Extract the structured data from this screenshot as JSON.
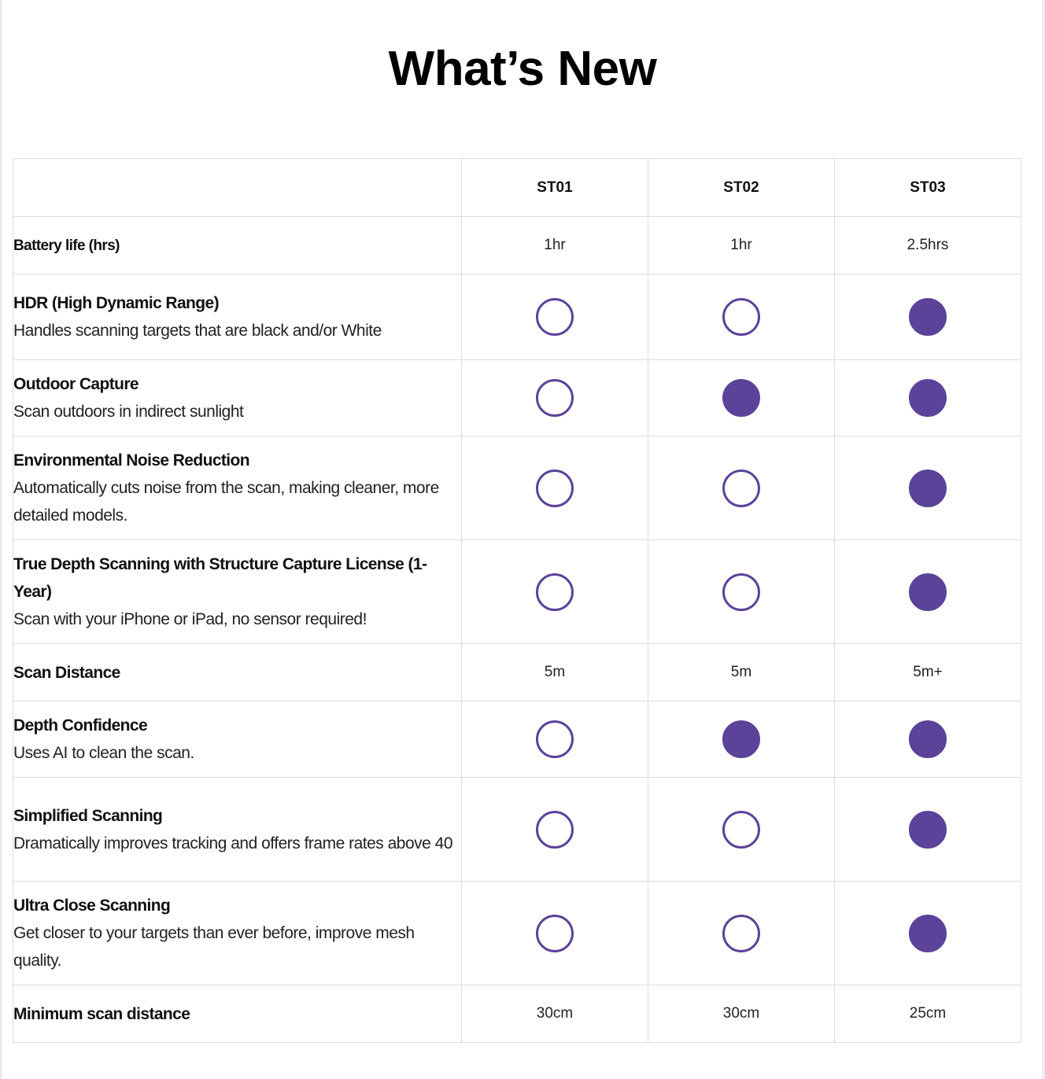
{
  "page": {
    "title": "What’s New"
  },
  "colors": {
    "accent": "#5b4399",
    "border": "#dcdcdc"
  },
  "table": {
    "models": [
      "ST01",
      "ST02",
      "ST03"
    ],
    "rows": [
      {
        "title": "Battery life (hrs)",
        "desc": "",
        "kind": "text",
        "values": [
          "1hr",
          "1hr",
          "2.5hrs"
        ]
      },
      {
        "title": "HDR (High Dynamic Range)",
        "desc": "Handles scanning targets that are black and/or White",
        "kind": "dot",
        "values": [
          false,
          false,
          true
        ]
      },
      {
        "title": "Outdoor Capture",
        "desc": "Scan outdoors in indirect sunlight",
        "kind": "dot",
        "values": [
          false,
          true,
          true
        ]
      },
      {
        "title": "Environmental Noise Reduction",
        "desc": "Automatically cuts noise from the scan, making cleaner, more detailed models.",
        "kind": "dot",
        "values": [
          false,
          false,
          true
        ]
      },
      {
        "title": "True Depth Scanning with Structure Capture License (1-Year)",
        "desc": "Scan with your iPhone or iPad, no sensor required!",
        "kind": "dot",
        "values": [
          false,
          false,
          true
        ]
      },
      {
        "title": "Scan Distance",
        "desc": "",
        "kind": "text",
        "values": [
          "5m",
          "5m",
          "5m+"
        ]
      },
      {
        "title": "Depth Confidence",
        "desc": "Uses AI to clean the scan.",
        "kind": "dot",
        "values": [
          false,
          true,
          true
        ]
      },
      {
        "title": "Simplified Scanning",
        "desc": "Dramatically improves tracking and offers frame rates above 40",
        "kind": "dot",
        "values": [
          false,
          false,
          true
        ]
      },
      {
        "title": "Ultra Close Scanning",
        "desc": "Get closer to your targets than ever before, improve mesh quality.",
        "kind": "dot",
        "values": [
          false,
          false,
          true
        ]
      },
      {
        "title": "Minimum scan distance",
        "desc": "",
        "kind": "text",
        "values": [
          "30cm",
          "30cm",
          "25cm"
        ]
      }
    ]
  }
}
